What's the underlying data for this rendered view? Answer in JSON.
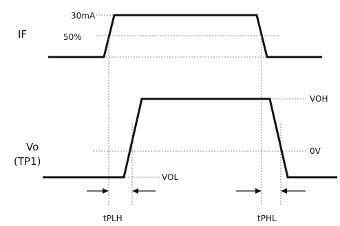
{
  "diagram": {
    "if_signal": {
      "name": "IF",
      "level_high": "30mA",
      "level_mid": "50%"
    },
    "vo_signal": {
      "name_line1": "Vo",
      "name_line2": "(TP1)",
      "level_high": "VOH",
      "level_mid": "0V",
      "level_low": "VOL"
    },
    "timings": {
      "rise_delay": "tPLH",
      "fall_delay": "tPHL"
    }
  }
}
